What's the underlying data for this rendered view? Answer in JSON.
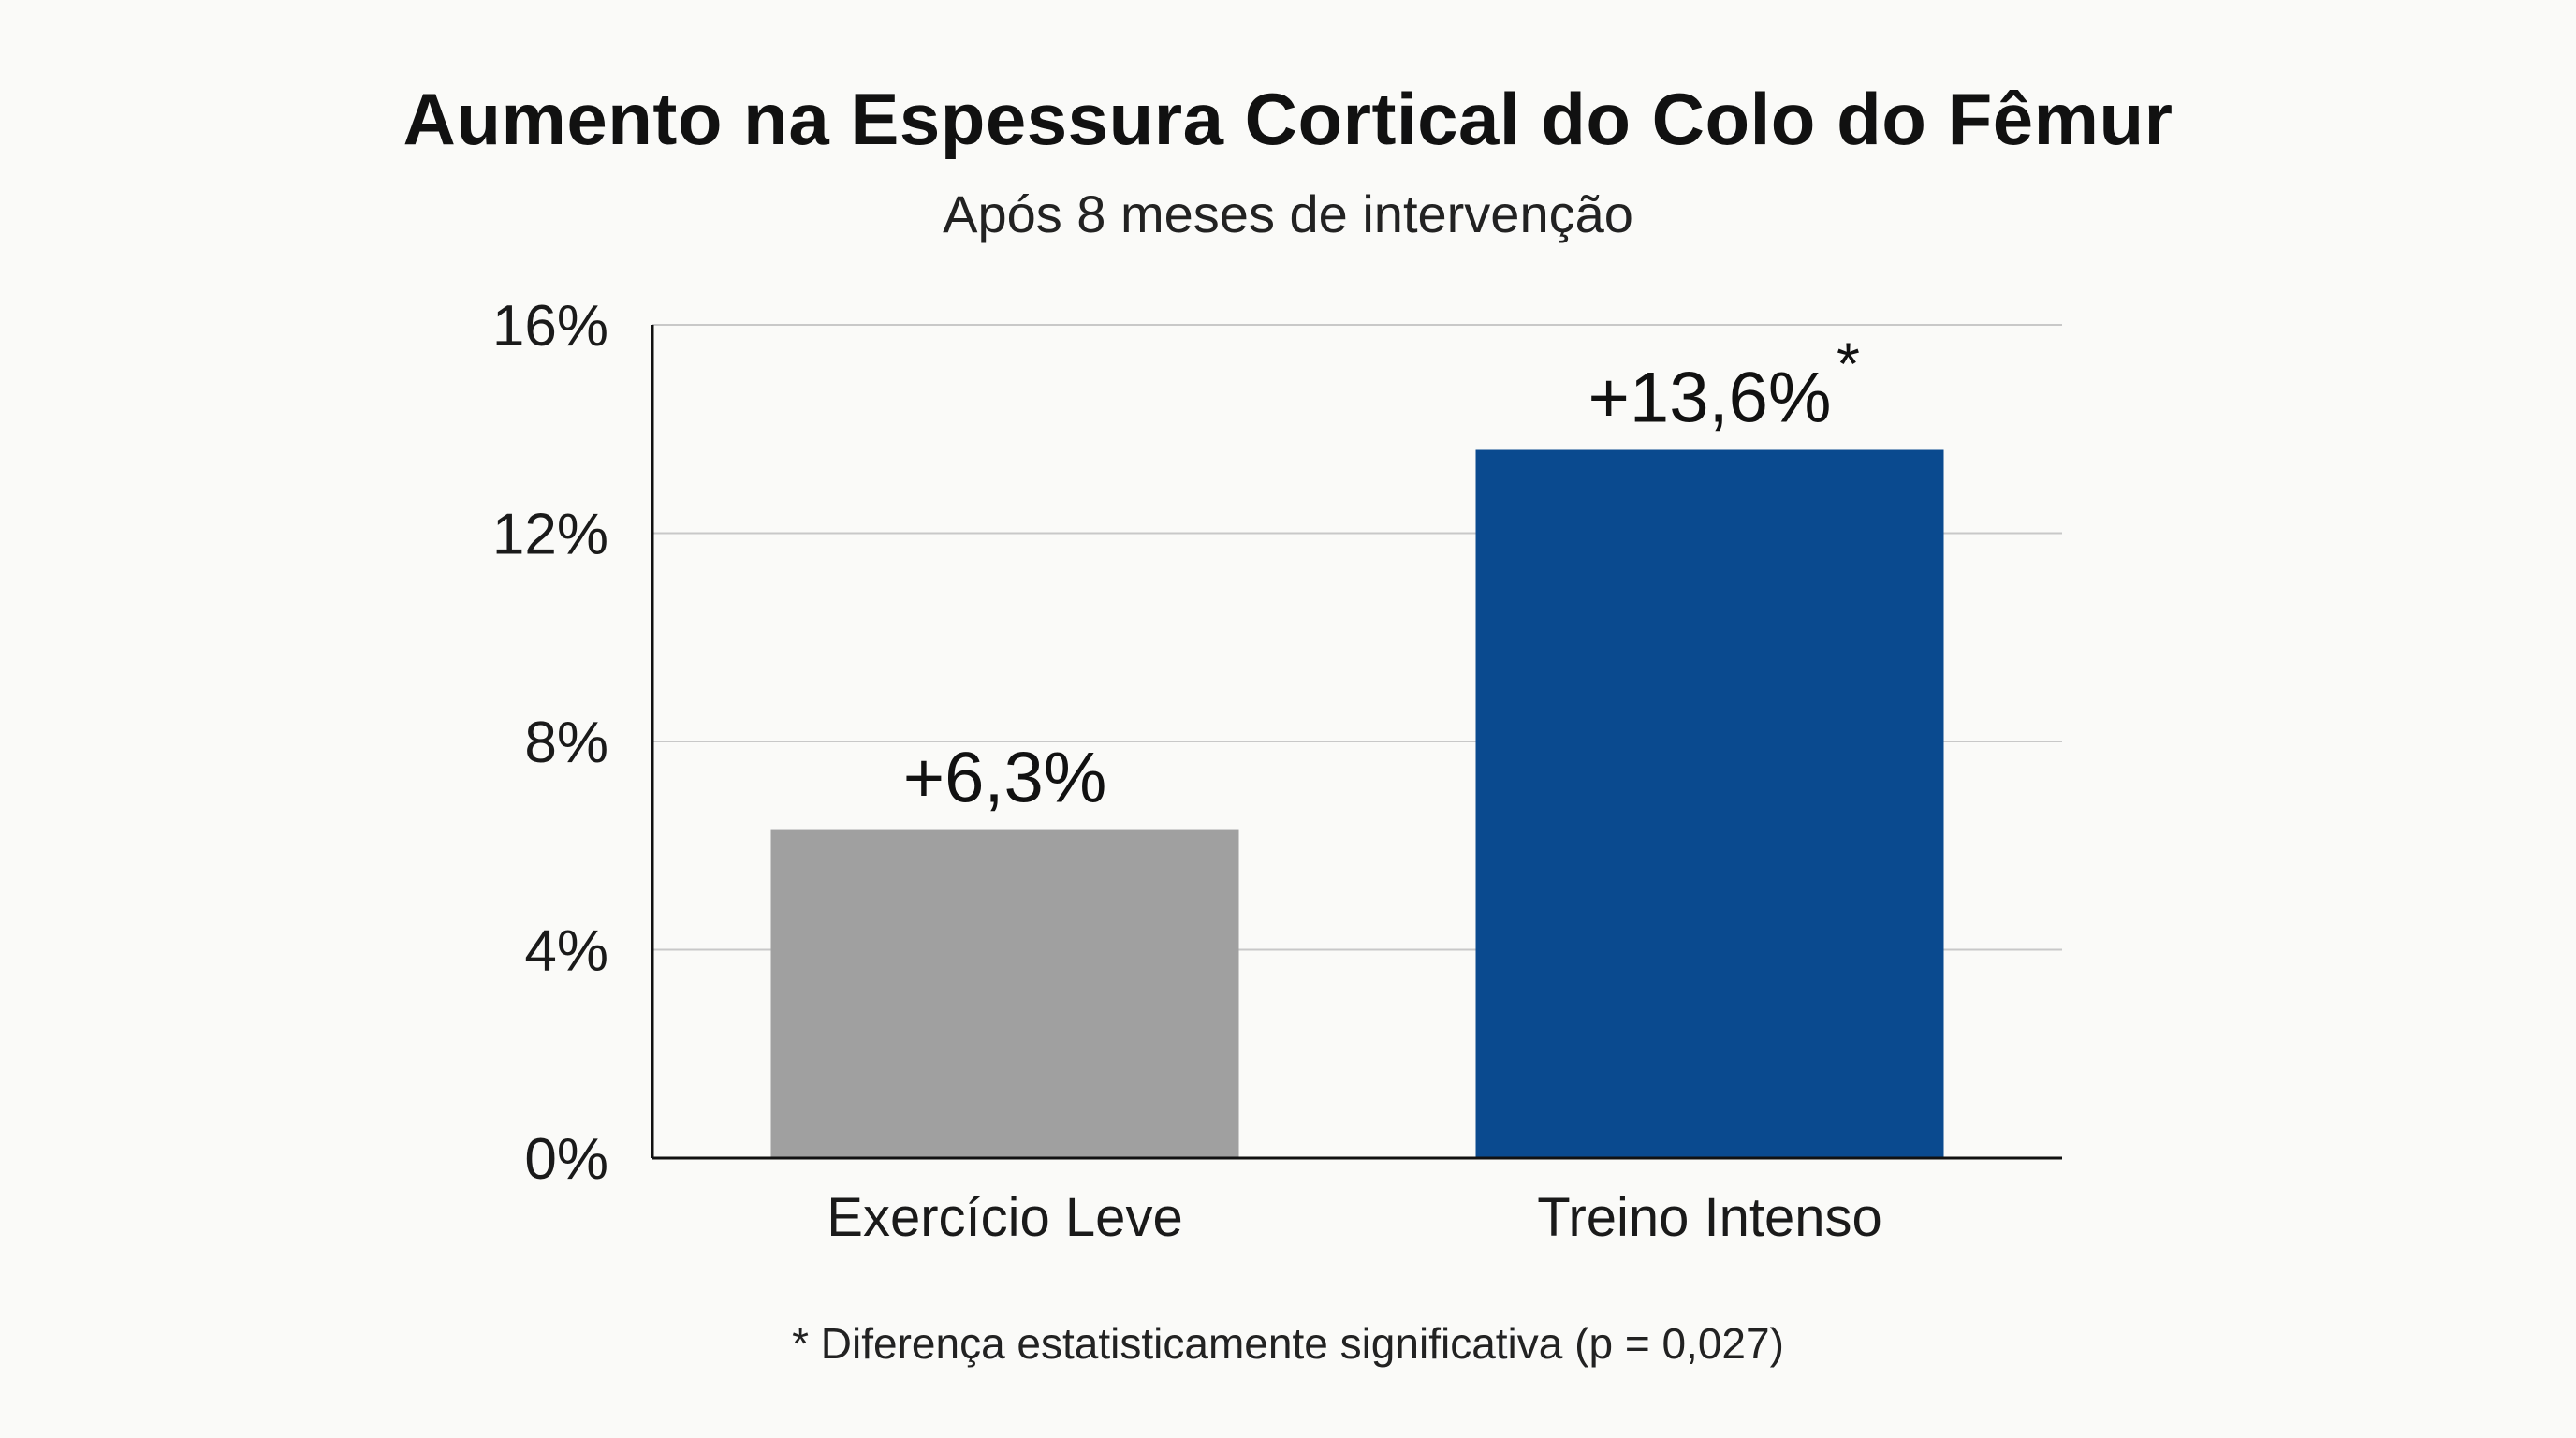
{
  "chart_data": {
    "type": "bar",
    "title": "Aumento na Espessura Cortical do Colo do Fêmur",
    "subtitle": "Após 8 meses de intervenção",
    "categories": [
      "Exercício Leve",
      "Treino Intenso"
    ],
    "values": [
      6.3,
      13.6
    ],
    "data_labels": [
      "+6,3%",
      "+13,6%"
    ],
    "significance_markers": [
      "",
      "*"
    ],
    "colors": [
      "#a0a0a0",
      "#0a4a8f"
    ],
    "xlabel": "",
    "ylabel": "",
    "ylim": [
      0,
      16
    ],
    "yticks": [
      0,
      4,
      8,
      12,
      16
    ],
    "ytick_labels": [
      "0%",
      "4%",
      "8%",
      "12%",
      "16%"
    ],
    "grid": true,
    "legend": "none",
    "footnote": "* Diferença estatisticamente significativa (p = 0,027)"
  }
}
